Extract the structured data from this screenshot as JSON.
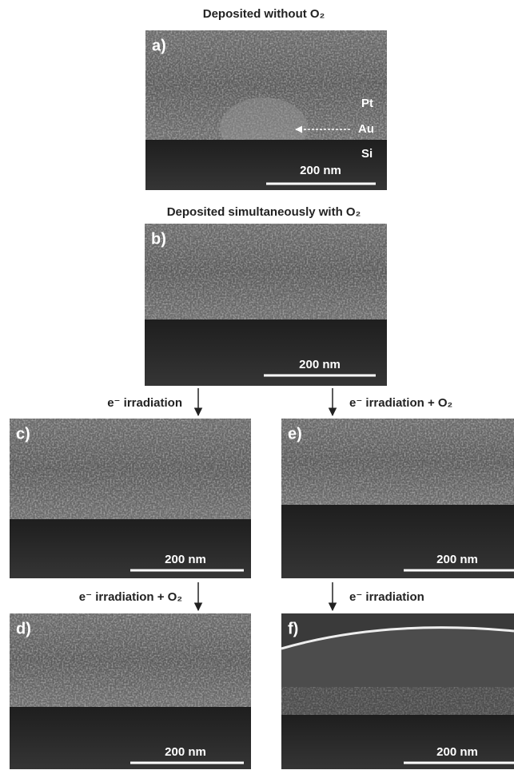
{
  "titles": [
    "Deposited without O₂",
    "Deposited simultaneously with O₂"
  ],
  "panels": [
    {
      "label": "a)",
      "scale_bar": "200 nm",
      "layer_labels": [
        "Pt",
        "Au",
        "Si"
      ]
    },
    {
      "label": "b)",
      "scale_bar": "200 nm"
    },
    {
      "label": "c)",
      "scale_bar": "200 nm"
    },
    {
      "label": "e)",
      "scale_bar": "200 nm"
    },
    {
      "label": "d)",
      "scale_bar": "200 nm"
    },
    {
      "label": "f)",
      "scale_bar": "200 nm"
    }
  ],
  "arrow_captions": [
    "e⁻ irradiation",
    "e⁻ irradiation + O₂",
    "e⁻ irradiation + O₂",
    "e⁻ irradiation"
  ]
}
